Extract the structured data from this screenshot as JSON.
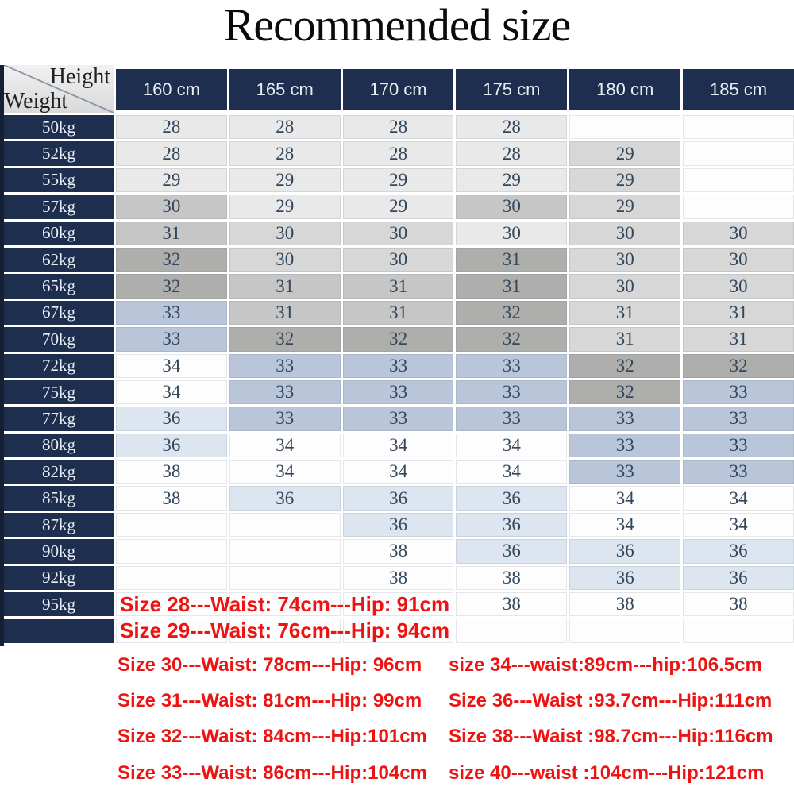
{
  "title": "Recommended size",
  "table": {
    "corner": {
      "top": "Height",
      "bottom": "Weight"
    },
    "columns": [
      "160 cm",
      "165 cm",
      "170 cm",
      "175 cm",
      "180 cm",
      "185 cm"
    ],
    "rows": [
      {
        "weight": "50kg",
        "cells": [
          [
            "28",
            "lg"
          ],
          [
            "28",
            "lg"
          ],
          [
            "28",
            "lg"
          ],
          [
            "28",
            "lg"
          ],
          [
            "",
            "w"
          ],
          [
            "",
            "w"
          ]
        ]
      },
      {
        "weight": "52kg",
        "cells": [
          [
            "28",
            "lg"
          ],
          [
            "28",
            "lg"
          ],
          [
            "28",
            "lg"
          ],
          [
            "28",
            "lg"
          ],
          [
            "29",
            "mg"
          ],
          [
            "",
            "w"
          ]
        ]
      },
      {
        "weight": "55kg",
        "cells": [
          [
            "29",
            "lg"
          ],
          [
            "29",
            "lg"
          ],
          [
            "29",
            "lg"
          ],
          [
            "29",
            "lg"
          ],
          [
            "29",
            "mg"
          ],
          [
            "",
            "w"
          ]
        ]
      },
      {
        "weight": "57kg",
        "cells": [
          [
            "30",
            "dg"
          ],
          [
            "29",
            "lg"
          ],
          [
            "29",
            "lg"
          ],
          [
            "30",
            "dg"
          ],
          [
            "29",
            "mg"
          ],
          [
            "",
            "w"
          ]
        ]
      },
      {
        "weight": "60kg",
        "cells": [
          [
            "31",
            "dg"
          ],
          [
            "30",
            "mg"
          ],
          [
            "30",
            "mg"
          ],
          [
            "30",
            "lg"
          ],
          [
            "30",
            "mg"
          ],
          [
            "30",
            "mg"
          ]
        ]
      },
      {
        "weight": "62kg",
        "cells": [
          [
            "32",
            "xg"
          ],
          [
            "30",
            "mg"
          ],
          [
            "30",
            "mg"
          ],
          [
            "31",
            "xg"
          ],
          [
            "30",
            "mg"
          ],
          [
            "30",
            "mg"
          ]
        ]
      },
      {
        "weight": "65kg",
        "cells": [
          [
            "32",
            "xg"
          ],
          [
            "31",
            "dg"
          ],
          [
            "31",
            "dg"
          ],
          [
            "31",
            "xg"
          ],
          [
            "30",
            "mg"
          ],
          [
            "30",
            "mg"
          ]
        ]
      },
      {
        "weight": "67kg",
        "cells": [
          [
            "33",
            "lb"
          ],
          [
            "31",
            "dg"
          ],
          [
            "31",
            "dg"
          ],
          [
            "32",
            "xg"
          ],
          [
            "31",
            "mg"
          ],
          [
            "31",
            "mg"
          ]
        ]
      },
      {
        "weight": "70kg",
        "cells": [
          [
            "33",
            "lb"
          ],
          [
            "32",
            "xg"
          ],
          [
            "32",
            "xg"
          ],
          [
            "32",
            "xg"
          ],
          [
            "31",
            "mg"
          ],
          [
            "31",
            "mg"
          ]
        ]
      },
      {
        "weight": "72kg",
        "cells": [
          [
            "34",
            "w"
          ],
          [
            "33",
            "lb"
          ],
          [
            "33",
            "lb"
          ],
          [
            "33",
            "lb"
          ],
          [
            "32",
            "xg"
          ],
          [
            "32",
            "xg"
          ]
        ]
      },
      {
        "weight": "75kg",
        "cells": [
          [
            "34",
            "w"
          ],
          [
            "33",
            "lb"
          ],
          [
            "33",
            "lb"
          ],
          [
            "33",
            "lb"
          ],
          [
            "32",
            "xg"
          ],
          [
            "33",
            "lb"
          ]
        ]
      },
      {
        "weight": "77kg",
        "cells": [
          [
            "36",
            "vb"
          ],
          [
            "33",
            "lb"
          ],
          [
            "33",
            "lb"
          ],
          [
            "33",
            "lb"
          ],
          [
            "33",
            "lb"
          ],
          [
            "33",
            "lb"
          ]
        ]
      },
      {
        "weight": "80kg",
        "cells": [
          [
            "36",
            "vb"
          ],
          [
            "34",
            "w"
          ],
          [
            "34",
            "w"
          ],
          [
            "34",
            "w"
          ],
          [
            "33",
            "lb"
          ],
          [
            "33",
            "lb"
          ]
        ]
      },
      {
        "weight": "82kg",
        "cells": [
          [
            "38",
            "w"
          ],
          [
            "34",
            "w"
          ],
          [
            "34",
            "w"
          ],
          [
            "34",
            "w"
          ],
          [
            "33",
            "lb"
          ],
          [
            "33",
            "lb"
          ]
        ]
      },
      {
        "weight": "85kg",
        "cells": [
          [
            "38",
            "w"
          ],
          [
            "36",
            "vb"
          ],
          [
            "36",
            "vb"
          ],
          [
            "36",
            "vb"
          ],
          [
            "34",
            "w"
          ],
          [
            "34",
            "w"
          ]
        ]
      },
      {
        "weight": "87kg",
        "cells": [
          [
            "",
            "w"
          ],
          [
            "",
            "w"
          ],
          [
            "36",
            "vb"
          ],
          [
            "36",
            "vb"
          ],
          [
            "34",
            "w"
          ],
          [
            "34",
            "w"
          ]
        ]
      },
      {
        "weight": "90kg",
        "cells": [
          [
            "",
            "w"
          ],
          [
            "",
            "w"
          ],
          [
            "38",
            "w"
          ],
          [
            "36",
            "vb"
          ],
          [
            "36",
            "vb"
          ],
          [
            "36",
            "vb"
          ]
        ]
      },
      {
        "weight": "92kg",
        "cells": [
          [
            "",
            "w"
          ],
          [
            "",
            "w"
          ],
          [
            "38",
            "w"
          ],
          [
            "38",
            "w"
          ],
          [
            "36",
            "vb"
          ],
          [
            "36",
            "vb"
          ]
        ]
      },
      {
        "weight": "95kg",
        "overlay": "Size 28---Waist: 74cm---Hip: 91cm",
        "cells": [
          [
            "",
            "w"
          ],
          [
            "",
            "w"
          ],
          [
            "",
            "w"
          ],
          [
            "38",
            "w"
          ],
          [
            "38",
            "w"
          ],
          [
            "38",
            "w"
          ]
        ]
      },
      {
        "weight": "",
        "overlay": "Size 29---Waist: 76cm---Hip: 94cm",
        "cells": [
          [
            "",
            "w"
          ],
          [
            "",
            "w"
          ],
          [
            "",
            "w"
          ],
          [
            "",
            "w"
          ],
          [
            "",
            "w"
          ],
          [
            "",
            "w"
          ]
        ]
      }
    ]
  },
  "notes": {
    "left": [
      "Size 30---Waist: 78cm---Hip: 96cm",
      "Size 31---Waist: 81cm---Hip: 99cm",
      "Size 32---Waist: 84cm---Hip:101cm",
      "Size 33---Waist: 86cm---Hip:104cm"
    ],
    "right": [
      "size 34---waist:89cm---hip:106.5cm",
      "Size 36---Waist :93.7cm---Hip:111cm",
      "Size 38---Waist :98.7cm---Hip:116cm",
      "size 40---waist :104cm---Hip:121cm"
    ]
  },
  "colors": {
    "navy": "#1d2e4e",
    "navy_text": "#e8edf5",
    "cell_text": "#32465c",
    "red": "#ee1313",
    "title_text": "#0b0b0b",
    "cells": {
      "w": "#fdfdfe",
      "lg": "#e9e9e9",
      "mg": "#d7d7d7",
      "dg": "#c6c6c6",
      "xg": "#aeaeac",
      "lb": "#b9c6d9",
      "vb": "#dde6f0"
    }
  },
  "chart_data": {
    "type": "table",
    "title": "Recommended size",
    "col_header_label": "Height",
    "row_header_label": "Weight",
    "columns": [
      "160 cm",
      "165 cm",
      "170 cm",
      "175 cm",
      "180 cm",
      "185 cm"
    ],
    "rows": [
      "50kg",
      "52kg",
      "55kg",
      "57kg",
      "60kg",
      "62kg",
      "65kg",
      "67kg",
      "70kg",
      "72kg",
      "75kg",
      "77kg",
      "80kg",
      "82kg",
      "85kg",
      "87kg",
      "90kg",
      "92kg",
      "95kg"
    ],
    "values": [
      [
        28,
        28,
        28,
        28,
        null,
        null
      ],
      [
        28,
        28,
        28,
        28,
        29,
        null
      ],
      [
        29,
        29,
        29,
        29,
        29,
        null
      ],
      [
        30,
        29,
        29,
        30,
        29,
        null
      ],
      [
        31,
        30,
        30,
        30,
        30,
        30
      ],
      [
        32,
        30,
        30,
        31,
        30,
        30
      ],
      [
        32,
        31,
        31,
        31,
        30,
        30
      ],
      [
        33,
        31,
        31,
        32,
        31,
        31
      ],
      [
        33,
        32,
        32,
        32,
        31,
        31
      ],
      [
        34,
        33,
        33,
        33,
        32,
        32
      ],
      [
        34,
        33,
        33,
        33,
        32,
        33
      ],
      [
        36,
        33,
        33,
        33,
        33,
        33
      ],
      [
        36,
        34,
        34,
        34,
        33,
        33
      ],
      [
        38,
        34,
        34,
        34,
        33,
        33
      ],
      [
        38,
        36,
        36,
        36,
        34,
        34
      ],
      [
        null,
        null,
        36,
        36,
        34,
        34
      ],
      [
        null,
        null,
        38,
        36,
        36,
        36
      ],
      [
        null,
        null,
        38,
        38,
        36,
        36
      ],
      [
        null,
        null,
        null,
        38,
        38,
        38
      ]
    ],
    "size_notes": [
      "Size 28---Waist: 74cm---Hip: 91cm",
      "Size 29---Waist: 76cm---Hip: 94cm",
      "Size 30---Waist: 78cm---Hip: 96cm",
      "Size 31---Waist: 81cm---Hip: 99cm",
      "Size 32---Waist: 84cm---Hip:101cm",
      "Size 33---Waist: 86cm---Hip:104cm",
      "size 34---waist:89cm---hip:106.5cm",
      "Size 36---Waist :93.7cm---Hip:111cm",
      "Size 38---Waist :98.7cm---Hip:116cm",
      "size 40---waist :104cm---Hip:121cm"
    ]
  }
}
